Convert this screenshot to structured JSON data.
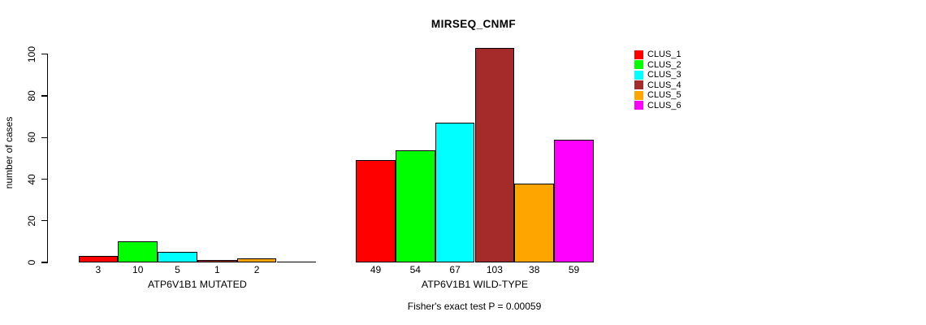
{
  "chart_data": {
    "type": "bar",
    "title": "MIRSEQ_CNMF",
    "ylabel": "number of cases",
    "xlabel": "",
    "ylim": [
      0,
      100
    ],
    "yticks": [
      0,
      20,
      40,
      60,
      80,
      100
    ],
    "grid": false,
    "legend_position": "top-right",
    "legend_entries": [
      "CLUS_1",
      "CLUS_2",
      "CLUS_3",
      "CLUS_4",
      "CLUS_5",
      "CLUS_6"
    ],
    "series_colors": [
      "#ff0000",
      "#00ff00",
      "#00ffff",
      "#a52a2a",
      "#ffa500",
      "#ff00ff"
    ],
    "groups": [
      {
        "label": "ATP6V1B1 MUTATED",
        "values": [
          3,
          10,
          5,
          1,
          2,
          0
        ],
        "bar_labels": [
          "3",
          "10",
          "5",
          "1",
          "2",
          ""
        ]
      },
      {
        "label": "ATP6V1B1 WILD-TYPE",
        "values": [
          49,
          54,
          67,
          103,
          38,
          59
        ],
        "bar_labels": [
          "49",
          "54",
          "67",
          "103",
          "38",
          "59"
        ]
      }
    ],
    "annotation": "Fisher's exact test P = 0.00059",
    "annotation_color": "#000000",
    "background_color": "#ffffff"
  }
}
